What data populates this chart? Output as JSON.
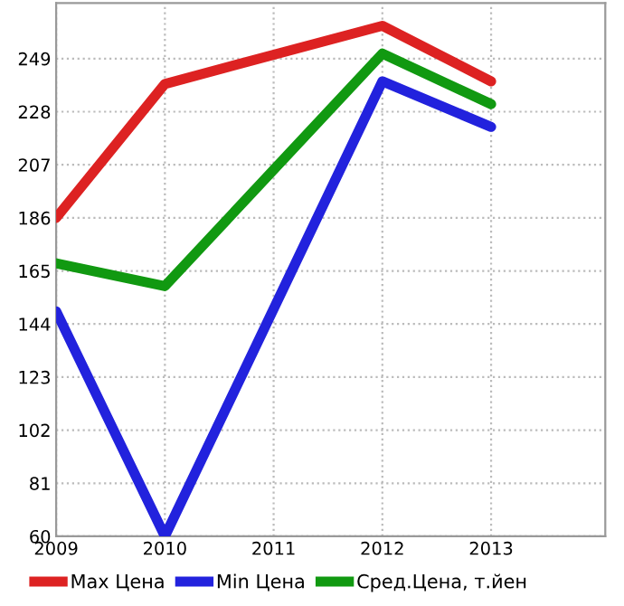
{
  "chart_data": {
    "type": "line",
    "x": [
      2009,
      2010,
      2012,
      2013
    ],
    "series": [
      {
        "name": "Max Цена",
        "color": "#dd2222",
        "values": [
          186,
          239,
          262,
          240
        ]
      },
      {
        "name": "Min Цена",
        "color": "#2222dd",
        "values": [
          149,
          60,
          240,
          222
        ]
      },
      {
        "name": "Сред.Цена, т.йен",
        "color": "#119911",
        "values": [
          168,
          159,
          251,
          231
        ]
      }
    ],
    "xlim": [
      2009,
      2014.05
    ],
    "xticks": [
      2009,
      2010,
      2011,
      2012,
      2013
    ],
    "ylim": [
      60,
      271
    ],
    "yticks": [
      60,
      81,
      102,
      123,
      144,
      165,
      186,
      207,
      228,
      249
    ],
    "grid": true,
    "legend": "bottom",
    "marker": "none",
    "line_style": "solid"
  }
}
